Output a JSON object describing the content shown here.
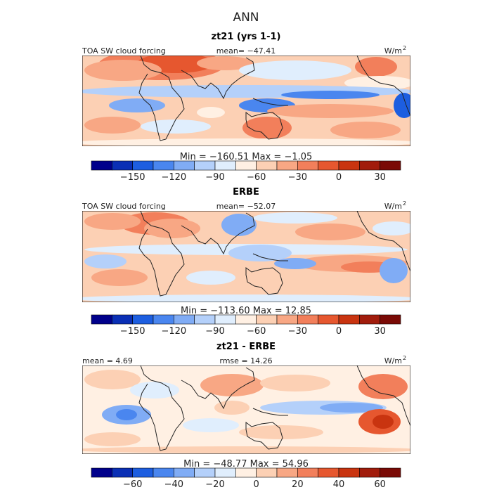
{
  "season": "ANN",
  "colors": {
    "palette": [
      "#00008b",
      "#0a2fb5",
      "#1d5ee0",
      "#4a86ef",
      "#80acf5",
      "#b4d0fa",
      "#e0eefd",
      "#fff0e3",
      "#fcd0b4",
      "#f8a784",
      "#f27f5b",
      "#e6572f",
      "#c93410",
      "#a11c0c",
      "#7a0a06"
    ],
    "coast": "#222222",
    "frame": "#000000"
  },
  "panels": [
    {
      "title": "zt21 (yrs 1-1)",
      "left_label": "TOA SW cloud forcing",
      "center_label": "mean= −47.41",
      "units": "W/m",
      "units_sup": "2",
      "minmax": "Min = −160.51 Max =  −1.05",
      "colorbar_ticks": [
        "−150",
        "−120",
        "−90",
        "−60",
        "−30",
        "0",
        "30"
      ]
    },
    {
      "title": "ERBE",
      "left_label": "TOA SW cloud forcing",
      "center_label": "mean= −52.07",
      "units": "W/m",
      "units_sup": "2",
      "minmax": "Min = −113.60 Max =  12.85",
      "colorbar_ticks": [
        "−150",
        "−120",
        "−90",
        "−60",
        "−30",
        "0",
        "30"
      ]
    },
    {
      "title": "zt21 - ERBE",
      "left_label": "mean =   4.69",
      "center_label": "rmse =  14.26",
      "units": "W/m",
      "units_sup": "2",
      "minmax": "Min = −48.77 Max =  54.96",
      "colorbar_ticks": [
        "−60",
        "−40",
        "−20",
        "0",
        "20",
        "40",
        "60"
      ]
    }
  ]
}
